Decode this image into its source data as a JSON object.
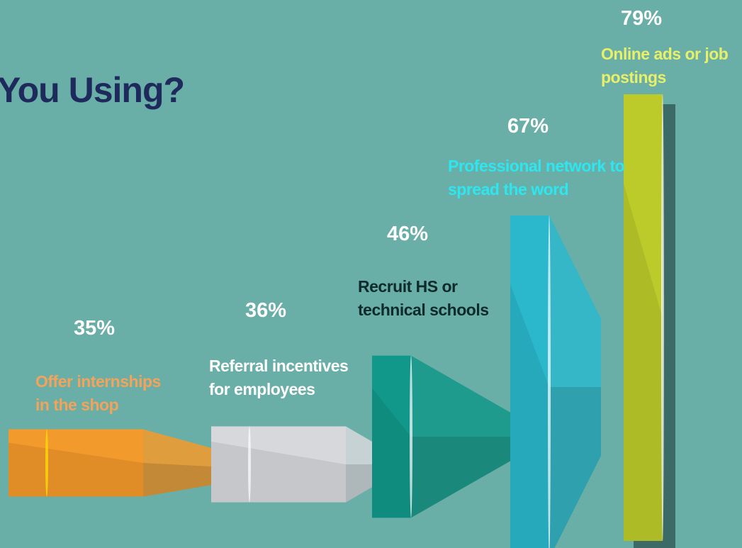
{
  "chart_data": {
    "type": "funnel-bar",
    "title": "You Using?",
    "categories": [
      "Offer internships in the shop",
      "Referral incentives for employees",
      "Recruit HS or technical schools",
      "Professional network to spread the word",
      "Online ads or job postings"
    ],
    "values": [
      35,
      36,
      46,
      67,
      79
    ],
    "value_labels": [
      "35%",
      "36%",
      "46%",
      "67%",
      "79%"
    ],
    "colors": [
      "#f39a2c",
      "#d6d8dc",
      "#12988a",
      "#2bb8cc",
      "#bccb2a"
    ],
    "label_colors": [
      "#f4a35a",
      "#ffffff",
      "#0d2b2b",
      "#2ee6f0",
      "#e8f06a"
    ]
  }
}
